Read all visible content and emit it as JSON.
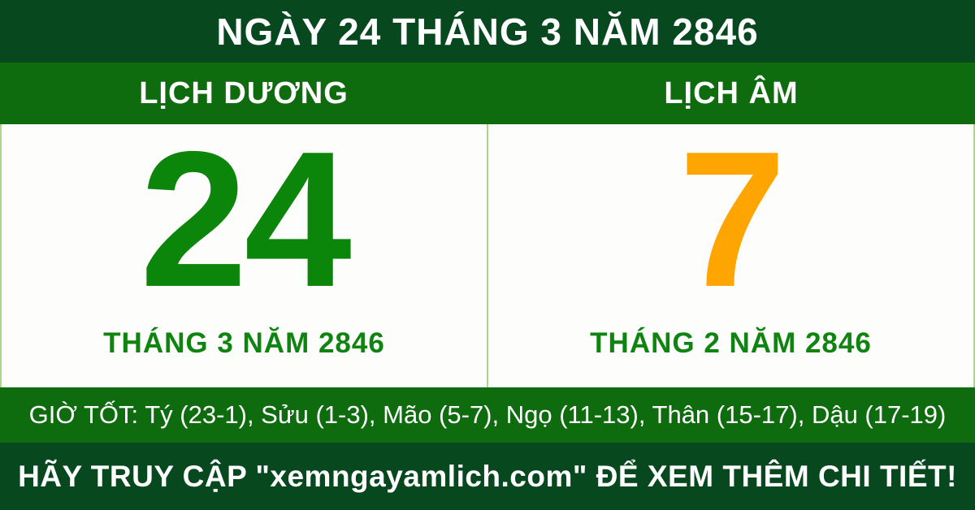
{
  "colors": {
    "dark_green": "#07481f",
    "green": "#0e6b0e",
    "bright_green": "#0b860b",
    "label_green": "#108410",
    "orange": "#ffa502",
    "panel_bg": "#fdfdfb",
    "divider": "#abd68d"
  },
  "header": {
    "title": "NGÀY 24 THÁNG 3 NĂM 2846"
  },
  "calendar": {
    "solar": {
      "label": "LỊCH DƯƠNG",
      "day": "24",
      "month_year": "THÁNG 3 NĂM 2846"
    },
    "lunar": {
      "label": "LỊCH ÂM",
      "day": "7",
      "month_year": "THÁNG 2 NĂM 2846"
    }
  },
  "good_hours": {
    "text": "GIỜ TỐT: Tý (23-1), Sửu (1-3), Mão (5-7), Ngọ (11-13), Thân (15-17), Dậu (17-19)"
  },
  "footer": {
    "text": "HÃY TRUY CẬP \"xemngayamlich.com\" ĐỂ XEM THÊM CHI TIẾT!"
  }
}
